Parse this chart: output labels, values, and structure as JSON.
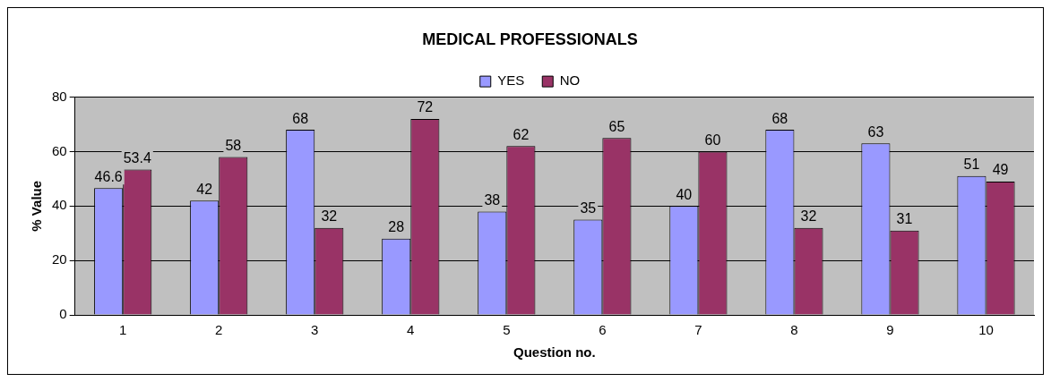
{
  "chart_data": {
    "type": "bar",
    "title": "MEDICAL PROFESSIONALS",
    "xlabel": "Question no.",
    "ylabel": "% Value",
    "categories": [
      "1",
      "2",
      "3",
      "4",
      "5",
      "6",
      "7",
      "8",
      "9",
      "10"
    ],
    "series": [
      {
        "name": "YES",
        "color": "#9999ff",
        "values": [
          46.6,
          42,
          68,
          28,
          38,
          35,
          40,
          68,
          63,
          51
        ]
      },
      {
        "name": "NO",
        "color": "#993366",
        "values": [
          53.4,
          58,
          32,
          72,
          62,
          65,
          60,
          32,
          31,
          49
        ]
      }
    ],
    "ylim": [
      0,
      80
    ],
    "yticks": [
      0,
      20,
      40,
      60,
      80
    ],
    "grid": "y",
    "legend": "top",
    "data_labels": true
  }
}
